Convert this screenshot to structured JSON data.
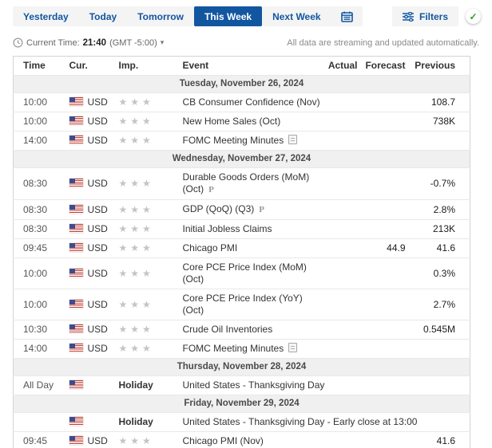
{
  "tabs": {
    "items": [
      {
        "label": "Yesterday",
        "active": false
      },
      {
        "label": "Today",
        "active": false
      },
      {
        "label": "Tomorrow",
        "active": false
      },
      {
        "label": "This Week",
        "active": true
      },
      {
        "label": "Next Week",
        "active": false
      }
    ]
  },
  "filters": {
    "label": "Filters"
  },
  "current_time": {
    "prefix": "Current Time:",
    "time": "21:40",
    "timezone": "(GMT -5:00)"
  },
  "streaming_note": "All data are streaming and updated automatically.",
  "icons": {
    "calendar": "calendar-icon",
    "filters": "sliders-icon",
    "status_check": "✓",
    "clock": "clock-icon",
    "caret": "▾",
    "star": "★",
    "preliminary": "P",
    "report": "report-icon",
    "flag": "us-flag-icon"
  },
  "colors": {
    "accent_blue": "#1256a0",
    "active_tab_bg": "#1256a0",
    "bar_bg": "#f4f4f4",
    "day_header_bg": "#f0f0f0",
    "star_gray": "#c4c4c4",
    "check_green": "#2f9e27",
    "border": "#e8e8e8"
  },
  "table": {
    "columns": [
      "Time",
      "Cur.",
      "Imp.",
      "Event",
      "Actual",
      "Forecast",
      "Previous"
    ],
    "sections": [
      {
        "date": "Tuesday, November 26, 2024",
        "rows": [
          {
            "time": "10:00",
            "cur": "USD",
            "stars": 3,
            "label": "",
            "event": "CB Consumer Confidence (Nov)",
            "p": false,
            "report": false,
            "actual": "",
            "forecast": "",
            "previous": "108.7"
          },
          {
            "time": "10:00",
            "cur": "USD",
            "stars": 3,
            "label": "",
            "event": "New Home Sales (Oct)",
            "p": false,
            "report": false,
            "actual": "",
            "forecast": "",
            "previous": "738K"
          },
          {
            "time": "14:00",
            "cur": "USD",
            "stars": 3,
            "label": "",
            "event": "FOMC Meeting Minutes",
            "p": false,
            "report": true,
            "actual": "",
            "forecast": "",
            "previous": ""
          }
        ]
      },
      {
        "date": "Wednesday, November 27, 2024",
        "rows": [
          {
            "time": "08:30",
            "cur": "USD",
            "stars": 3,
            "label": "",
            "event": "Durable Goods Orders (MoM)\n(Oct)",
            "p": true,
            "report": false,
            "actual": "",
            "forecast": "",
            "previous": "-0.7%"
          },
          {
            "time": "08:30",
            "cur": "USD",
            "stars": 3,
            "label": "",
            "event": "GDP (QoQ) (Q3)",
            "p": true,
            "report": false,
            "actual": "",
            "forecast": "",
            "previous": "2.8%"
          },
          {
            "time": "08:30",
            "cur": "USD",
            "stars": 3,
            "label": "",
            "event": "Initial Jobless Claims",
            "p": false,
            "report": false,
            "actual": "",
            "forecast": "",
            "previous": "213K"
          },
          {
            "time": "09:45",
            "cur": "USD",
            "stars": 3,
            "label": "",
            "event": "Chicago PMI",
            "p": false,
            "report": false,
            "actual": "",
            "forecast": "44.9",
            "previous": "41.6"
          },
          {
            "time": "10:00",
            "cur": "USD",
            "stars": 3,
            "label": "",
            "event": "Core PCE Price Index (MoM)\n(Oct)",
            "p": false,
            "report": false,
            "actual": "",
            "forecast": "",
            "previous": "0.3%"
          },
          {
            "time": "10:00",
            "cur": "USD",
            "stars": 3,
            "label": "",
            "event": "Core PCE Price Index (YoY)\n(Oct)",
            "p": false,
            "report": false,
            "actual": "",
            "forecast": "",
            "previous": "2.7%"
          },
          {
            "time": "10:30",
            "cur": "USD",
            "stars": 3,
            "label": "",
            "event": "Crude Oil Inventories",
            "p": false,
            "report": false,
            "actual": "",
            "forecast": "",
            "previous": "0.545M"
          },
          {
            "time": "14:00",
            "cur": "USD",
            "stars": 3,
            "label": "",
            "event": "FOMC Meeting Minutes",
            "p": false,
            "report": true,
            "actual": "",
            "forecast": "",
            "previous": ""
          }
        ]
      },
      {
        "date": "Thursday, November 28, 2024",
        "rows": [
          {
            "time": "All Day",
            "cur": "",
            "stars": 0,
            "label": "Holiday",
            "event": "United States - Thanksgiving Day",
            "p": false,
            "report": false,
            "actual": "",
            "forecast": "",
            "previous": ""
          }
        ]
      },
      {
        "date": "Friday, November 29, 2024",
        "rows": [
          {
            "time": "",
            "cur": "",
            "stars": 0,
            "label": "Holiday",
            "event": "United States - Thanksgiving Day - Early close at 13:00",
            "p": false,
            "report": false,
            "actual": "",
            "forecast": "",
            "previous": ""
          },
          {
            "time": "09:45",
            "cur": "USD",
            "stars": 3,
            "label": "",
            "event": "Chicago PMI (Nov)",
            "p": false,
            "report": false,
            "actual": "",
            "forecast": "",
            "previous": "41.6"
          }
        ]
      }
    ]
  }
}
